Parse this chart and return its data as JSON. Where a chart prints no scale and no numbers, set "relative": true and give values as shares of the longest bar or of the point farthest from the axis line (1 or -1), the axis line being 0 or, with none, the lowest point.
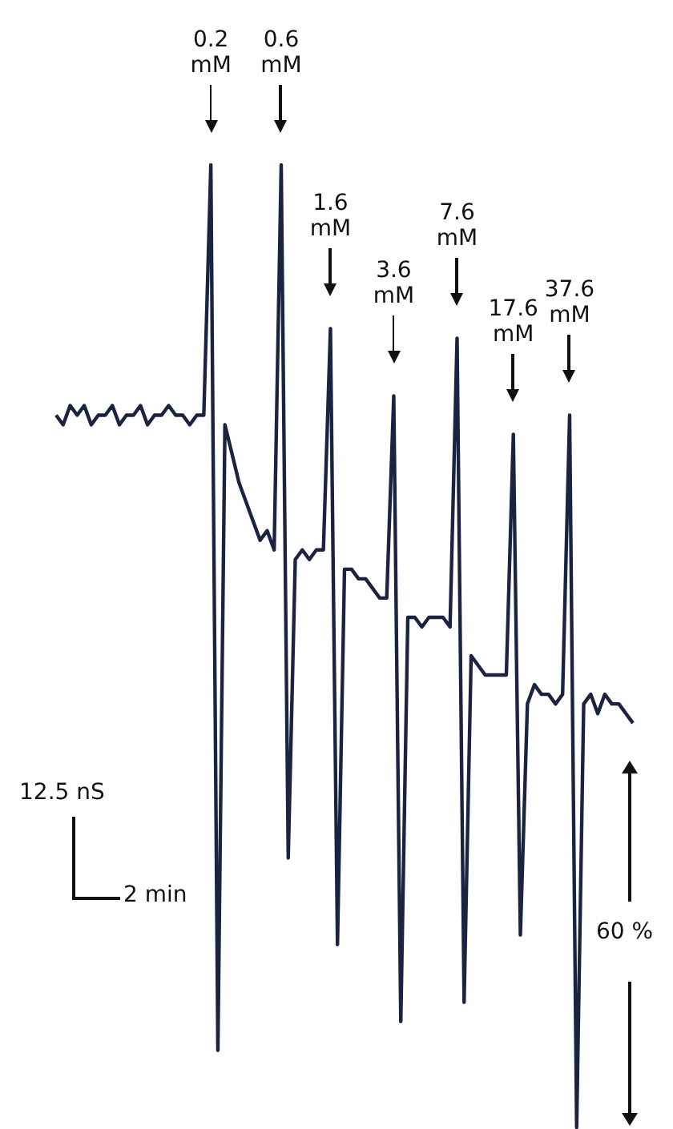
{
  "chart_data": {
    "type": "line",
    "relative": true,
    "marker": "none",
    "categories": [
      null,
      null,
      null,
      null,
      null,
      null,
      null,
      null,
      null,
      null,
      null,
      null,
      null,
      null,
      null,
      null,
      null,
      null,
      null,
      null,
      null,
      null,
      null,
      null,
      null,
      null,
      null,
      null,
      null,
      null,
      null,
      null,
      null,
      null,
      null,
      null,
      null,
      null,
      null,
      null,
      null,
      null,
      null,
      null,
      null,
      null,
      null,
      null,
      null,
      null,
      null,
      null,
      null,
      null,
      null,
      null,
      null,
      null,
      null,
      null,
      null,
      null,
      null,
      null,
      null,
      null,
      null,
      null,
      null,
      null,
      null,
      null,
      null,
      null,
      null,
      null,
      null,
      null,
      null,
      null,
      null,
      null,
      null
    ],
    "series": [
      {
        "color": "#1a2340",
        "values": [
          0.74,
          0.73,
          0.75,
          0.74,
          0.75,
          0.73,
          0.74,
          0.74,
          0.75,
          0.73,
          0.74,
          0.74,
          0.75,
          0.73,
          0.74,
          0.74,
          0.75,
          0.74,
          0.74,
          0.73,
          0.74,
          0.74,
          1.0,
          0.08,
          0.73,
          0.7,
          0.67,
          0.65,
          0.63,
          0.61,
          0.62,
          0.6,
          1.0,
          0.28,
          0.59,
          0.6,
          0.59,
          0.6,
          0.6,
          0.83,
          0.19,
          0.58,
          0.58,
          0.57,
          0.57,
          0.56,
          0.55,
          0.55,
          0.76,
          0.11,
          0.53,
          0.53,
          0.52,
          0.53,
          0.53,
          0.53,
          0.52,
          0.82,
          0.13,
          0.49,
          0.48,
          0.47,
          0.47,
          0.47,
          0.47,
          0.72,
          0.2,
          0.44,
          0.46,
          0.45,
          0.45,
          0.44,
          0.45,
          0.74,
          0,
          0.44,
          0.45,
          0.43,
          0.45,
          0.44,
          0.44,
          0.43,
          0.42
        ]
      }
    ],
    "annotations": [
      "0.2 mM",
      "0.6 mM",
      "1.6 mM",
      "3.6 mM",
      "7.6 mM",
      "17.6 mM",
      "37.6 mM",
      "12.5 nS",
      "2 min",
      "60 %"
    ]
  }
}
